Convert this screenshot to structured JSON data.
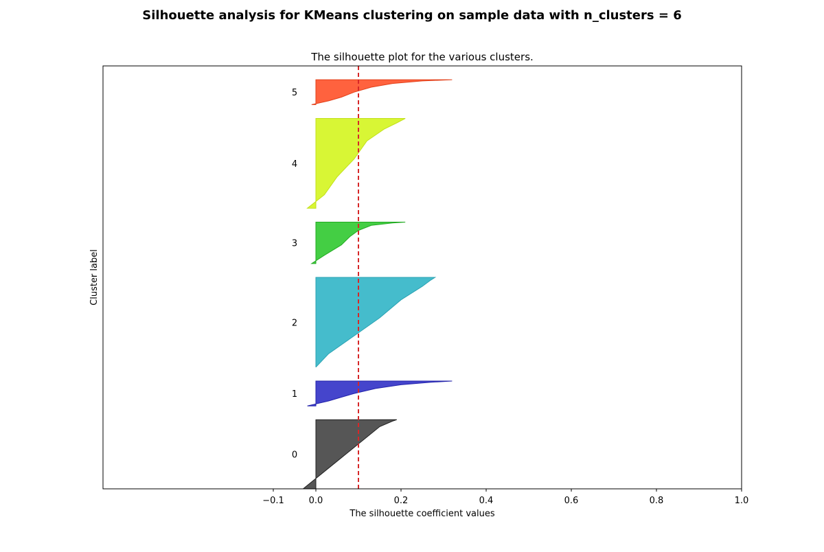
{
  "figure": {
    "suptitle": "Silhouette analysis for KMeans clustering on sample data with n_clusters = 6"
  },
  "chart_data": {
    "type": "area",
    "title": "The silhouette plot for the various clusters.",
    "xlabel": "The silhouette coefficient values",
    "ylabel": "Cluster label",
    "xlim": [
      -0.5,
      1.0
    ],
    "xticks": [
      -0.1,
      0.0,
      0.2,
      0.4,
      0.6,
      0.8,
      1.0
    ],
    "xtick_labels": [
      "−0.1",
      "0.0",
      "0.2",
      "0.4",
      "0.6",
      "0.8",
      "1.0"
    ],
    "yticks": "none",
    "grid": false,
    "average_silhouette_score": 0.1,
    "average_line_color": "#d62728",
    "clusters": [
      {
        "label": "0",
        "size": 50,
        "color": "#4d4d4d",
        "edge": "#222222",
        "profile": [
          [
            0,
            -0.03
          ],
          [
            0.25,
            0.02
          ],
          [
            0.45,
            0.06
          ],
          [
            0.6,
            0.09
          ],
          [
            0.75,
            0.12
          ],
          [
            0.9,
            0.15
          ],
          [
            0.98,
            0.18
          ],
          [
            1,
            0.19
          ]
        ]
      },
      {
        "label": "1",
        "size": 18,
        "color": "#3b3bc9",
        "edge": "#2222aa",
        "profile": [
          [
            0,
            -0.02
          ],
          [
            0.2,
            0.03
          ],
          [
            0.35,
            0.06
          ],
          [
            0.5,
            0.09
          ],
          [
            0.7,
            0.14
          ],
          [
            0.85,
            0.2
          ],
          [
            0.95,
            0.27
          ],
          [
            1,
            0.32
          ]
        ]
      },
      {
        "label": "2",
        "size": 65,
        "color": "#3bb8c9",
        "edge": "#2aa2b2",
        "profile": [
          [
            0,
            0.0
          ],
          [
            0.15,
            0.03
          ],
          [
            0.35,
            0.09
          ],
          [
            0.55,
            0.15
          ],
          [
            0.75,
            0.2
          ],
          [
            0.9,
            0.25
          ],
          [
            0.97,
            0.27
          ],
          [
            1,
            0.28
          ]
        ]
      },
      {
        "label": "3",
        "size": 30,
        "color": "#3acb3a",
        "edge": "#22aa22",
        "profile": [
          [
            0,
            -0.01
          ],
          [
            0.2,
            0.02
          ],
          [
            0.45,
            0.06
          ],
          [
            0.65,
            0.08
          ],
          [
            0.8,
            0.1
          ],
          [
            0.92,
            0.13
          ],
          [
            0.98,
            0.18
          ],
          [
            1,
            0.21
          ]
        ]
      },
      {
        "label": "4",
        "size": 65,
        "color": "#d6f52a",
        "edge": "#c2e01a",
        "profile": [
          [
            0,
            -0.02
          ],
          [
            0.15,
            0.02
          ],
          [
            0.35,
            0.05
          ],
          [
            0.55,
            0.09
          ],
          [
            0.75,
            0.12
          ],
          [
            0.88,
            0.16
          ],
          [
            0.95,
            0.19
          ],
          [
            1,
            0.21
          ]
        ]
      },
      {
        "label": "5",
        "size": 18,
        "color": "#ff5a34",
        "edge": "#e2401a",
        "profile": [
          [
            0,
            -0.01
          ],
          [
            0.15,
            0.03
          ],
          [
            0.3,
            0.06
          ],
          [
            0.5,
            0.09
          ],
          [
            0.7,
            0.13
          ],
          [
            0.85,
            0.18
          ],
          [
            0.95,
            0.25
          ],
          [
            1,
            0.32
          ]
        ]
      }
    ],
    "y_min": 0,
    "y_max": 306
  }
}
